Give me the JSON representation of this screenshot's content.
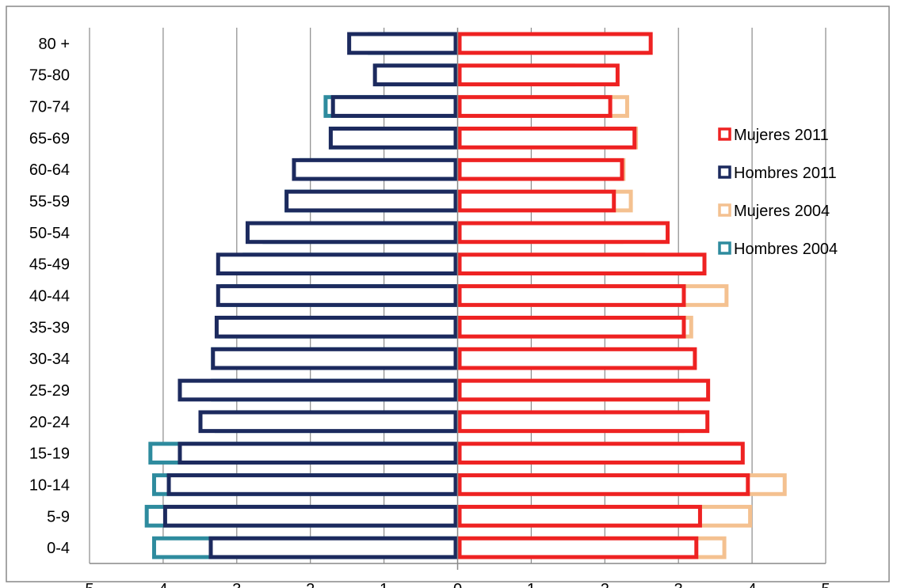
{
  "chart_data": {
    "type": "bar",
    "orientation": "horizontal",
    "categories": [
      "80 +",
      "75-80",
      "70-74",
      "65-69",
      "60-64",
      "55-59",
      "50-54",
      "45-49",
      "40-44",
      "35-39",
      "30-34",
      "25-29",
      "20-24",
      "15-19",
      "10-14",
      "5-9",
      "0-4"
    ],
    "x_tick_labels": [
      "5",
      "4",
      "3",
      "2",
      "1",
      "0",
      "1",
      "2",
      "3",
      "4",
      "5"
    ],
    "xlim": [
      -5,
      5
    ],
    "grid": "vertical",
    "legend_position": "right",
    "series": [
      {
        "name": "Mujeres 2011",
        "side": "right",
        "color": "#ee2222",
        "values": [
          2.65,
          2.2,
          2.1,
          2.43,
          2.26,
          2.15,
          2.88,
          3.38,
          3.1,
          3.1,
          3.25,
          3.43,
          3.42,
          3.9,
          3.97,
          3.32,
          3.27
        ]
      },
      {
        "name": "Hombres 2011",
        "side": "left",
        "color": "#1c2a5e",
        "values": [
          1.5,
          1.15,
          1.72,
          1.75,
          2.25,
          2.35,
          2.88,
          3.28,
          3.28,
          3.3,
          3.35,
          3.8,
          3.52,
          3.8,
          3.95,
          4.0,
          3.38
        ]
      },
      {
        "name": "Mujeres 2004",
        "side": "right",
        "color": "#f4c190",
        "values": [
          2.6,
          1.6,
          2.33,
          2.45,
          2.28,
          2.38,
          2.25,
          2.55,
          3.68,
          3.2,
          3.15,
          3.15,
          3.08,
          3.82,
          4.47,
          4.0,
          3.65
        ]
      },
      {
        "name": "Hombres 2004",
        "side": "left",
        "color": "#2e8b9e",
        "values": [
          1.22,
          1.12,
          1.82,
          1.75,
          2.15,
          2.35,
          2.65,
          2.92,
          3.22,
          3.25,
          3.35,
          3.35,
          3.3,
          4.2,
          4.15,
          4.25,
          4.15
        ]
      }
    ]
  }
}
